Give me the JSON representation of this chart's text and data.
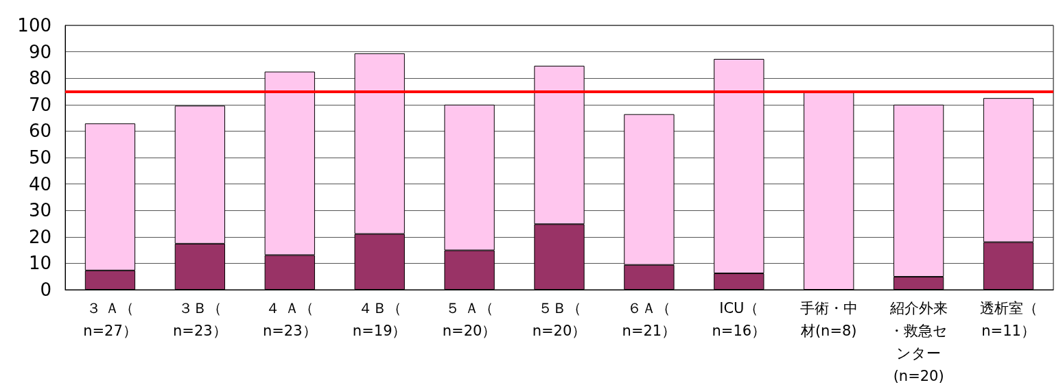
{
  "chart_data": {
    "type": "bar",
    "stacked": true,
    "categories": [
      "３ Ａ（n=27）",
      "３Ｂ（n=23）",
      "４ Ａ（n=23）",
      "４Ｂ（n=19）",
      "５ Ａ（n=20）",
      "５Ｂ（n=20）",
      "６Ａ（n=21）",
      "ICU（n=16）",
      "手術・中材(n=8)",
      "紹介外来・救急センター(n=20)",
      "透析室（n=11）"
    ],
    "series": [
      {
        "color": "#993366",
        "values": [
          7.3,
          17.4,
          13.1,
          21.1,
          14.9,
          24.8,
          9.4,
          6.2,
          0,
          4.9,
          18.0
        ]
      },
      {
        "color": "#ffc6ee",
        "values": [
          55.6,
          52.2,
          69.4,
          68.3,
          55.1,
          59.9,
          57.0,
          81.1,
          74.6,
          65.1,
          54.5
        ]
      }
    ],
    "ylim": [
      0,
      100
    ],
    "yticks": [
      0,
      10,
      20,
      30,
      40,
      50,
      60,
      70,
      80,
      90,
      100
    ],
    "grid": "y",
    "ref_lines": [
      {
        "axis": "y",
        "value": 75,
        "color": "#ff0000"
      }
    ]
  }
}
